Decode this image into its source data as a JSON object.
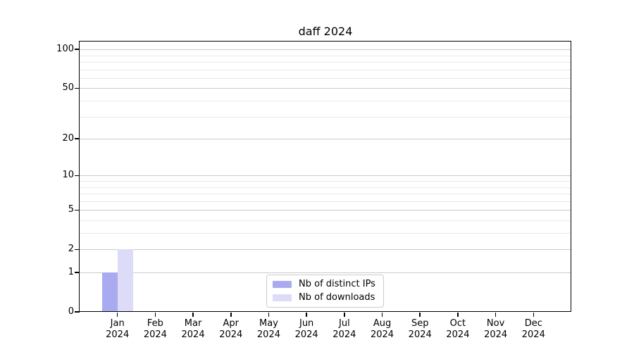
{
  "figure": {
    "background": "#ffffff"
  },
  "chart_data": {
    "type": "bar",
    "title": "daff 2024",
    "categories": [
      "Jan 2024",
      "Feb 2024",
      "Mar 2024",
      "Apr 2024",
      "May 2024",
      "Jun 2024",
      "Jul 2024",
      "Aug 2024",
      "Sep 2024",
      "Oct 2024",
      "Nov 2024",
      "Dec 2024"
    ],
    "series": [
      {
        "name": "Nb of distinct IPs",
        "color": "#aaaaf0",
        "values": [
          1,
          0,
          0,
          0,
          0,
          0,
          0,
          0,
          0,
          0,
          0,
          0
        ]
      },
      {
        "name": "Nb of downloads",
        "color": "#dcdcf8",
        "values": [
          2,
          0,
          0,
          0,
          0,
          0,
          0,
          0,
          0,
          0,
          0,
          0
        ]
      }
    ],
    "xlabel": "",
    "ylabel": "",
    "y_axis": {
      "scale": "log1p",
      "ylim": [
        0,
        115
      ],
      "major_ticks": [
        0,
        1,
        2,
        5,
        10,
        20,
        50,
        100
      ],
      "minor_ticks": [
        3,
        4,
        6,
        7,
        8,
        9,
        30,
        40,
        60,
        70,
        80,
        90
      ]
    },
    "grid": true,
    "legend_position": "lower center"
  }
}
